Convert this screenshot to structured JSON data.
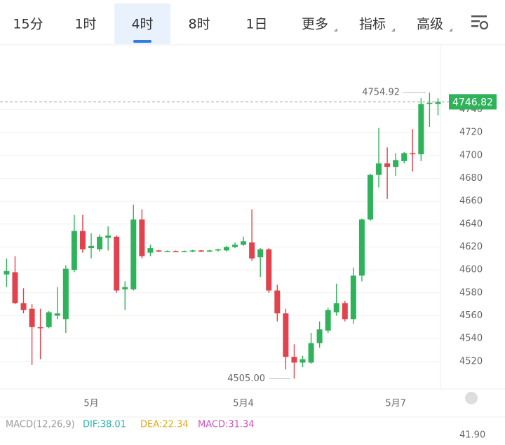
{
  "tabs": [
    "15分",
    "1时",
    "4时",
    "8时",
    "1日",
    "更多",
    "指标",
    "高级"
  ],
  "active_tab": 2,
  "chart_data": {
    "type": "candlestick",
    "categories": [
      null,
      null,
      null,
      null,
      null,
      null,
      null,
      null,
      null,
      null,
      "5月",
      null,
      null,
      null,
      null,
      null,
      null,
      null,
      null,
      null,
      null,
      null,
      null,
      null,
      null,
      null,
      null,
      null,
      "5月4",
      null,
      null,
      null,
      null,
      null,
      null,
      null,
      null,
      null,
      null,
      null,
      null,
      null,
      null,
      null,
      null,
      null,
      "5月7",
      null,
      null,
      null,
      null,
      null
    ],
    "open": [
      4596,
      4598,
      4571,
      4566,
      4550,
      4550,
      4560,
      4557,
      4600,
      4634,
      4619,
      4618,
      4628,
      4629,
      4583,
      4583,
      4644,
      4615,
      4617,
      4616,
      4616.5,
      4616,
      4616,
      4617,
      4616,
      4617,
      4617,
      4620,
      4622,
      4624,
      4611,
      4618,
      4582,
      4562,
      4524,
      4519,
      4519,
      4536,
      4547,
      4563,
      4571,
      4557,
      4595,
      4644,
      4683,
      4693,
      4690,
      4695,
      4702,
      4701,
      4745,
      4745
    ],
    "high": [
      4610,
      4612,
      4584,
      4570,
      4566,
      4564,
      4585,
      4604,
      4648,
      4648,
      4632,
      4631,
      4638,
      4630,
      4590,
      4657,
      4653,
      4622,
      4617.5,
      4617,
      4617,
      4617,
      4617.5,
      4617.5,
      4617.5,
      4618.5,
      4621,
      4624,
      4629,
      4653,
      4619,
      4619,
      4587,
      4566,
      4535,
      4525,
      4545,
      4555,
      4567,
      4588,
      4573,
      4602,
      4645,
      4684,
      4724,
      4707,
      4702,
      4703,
      4723,
      4750,
      4754.92,
      4750
    ],
    "low": [
      4585,
      4570,
      4562,
      4517,
      4522,
      4549,
      4557,
      4545,
      4598,
      4615,
      4610,
      4616,
      4617,
      4580,
      4565,
      4582,
      4610,
      4612,
      4615.5,
      4615.5,
      4615.5,
      4615.5,
      4615.5,
      4615.5,
      4615.5,
      4616,
      4616,
      4619,
      4621,
      4608,
      4594,
      4580,
      4555,
      4513,
      4505,
      4515,
      4518,
      4532,
      4545,
      4560,
      4555,
      4553,
      4590,
      4643,
      4672,
      4662,
      4682,
      4693,
      4686,
      4695,
      4725,
      4735
    ],
    "close": [
      4599,
      4571,
      4565,
      4550,
      4549,
      4563,
      4562,
      4601,
      4634,
      4618,
      4621,
      4629,
      4630,
      4582,
      4585,
      4644,
      4612,
      4619,
      4616,
      4616.5,
      4616,
      4616.5,
      4617,
      4616,
      4617,
      4618,
      4620,
      4622,
      4625,
      4610,
      4618,
      4582,
      4562,
      4524,
      4519,
      4522,
      4536,
      4548,
      4565,
      4571,
      4557,
      4595,
      4644,
      4683,
      4693,
      4690,
      4696,
      4702,
      4701,
      4745,
      4746,
      4746.82
    ],
    "up_color": "#2fb35a",
    "down_color": "#e0434e",
    "ylim": [
      4496,
      4796
    ],
    "yticks": [
      4520,
      4540,
      4560,
      4580,
      4600,
      4620,
      4640,
      4660,
      4680,
      4700,
      4720,
      4740
    ],
    "grid": true,
    "last_price": 4746.82,
    "max_marker": {
      "value": 4754.92,
      "label": "4754.92"
    },
    "min_marker": {
      "value": 4505,
      "label": "4505.00"
    }
  },
  "indicator": {
    "items": [
      {
        "text": "MACD(12,26,9)",
        "color": "#9a9a9a"
      },
      {
        "text": "DIF:38.01",
        "color": "#20b2aa"
      },
      {
        "text": "DEA:22.34",
        "color": "#e6a817"
      },
      {
        "text": "MACD:31.34",
        "color": "#d14fc0"
      }
    ],
    "axis_label": "41.90"
  }
}
